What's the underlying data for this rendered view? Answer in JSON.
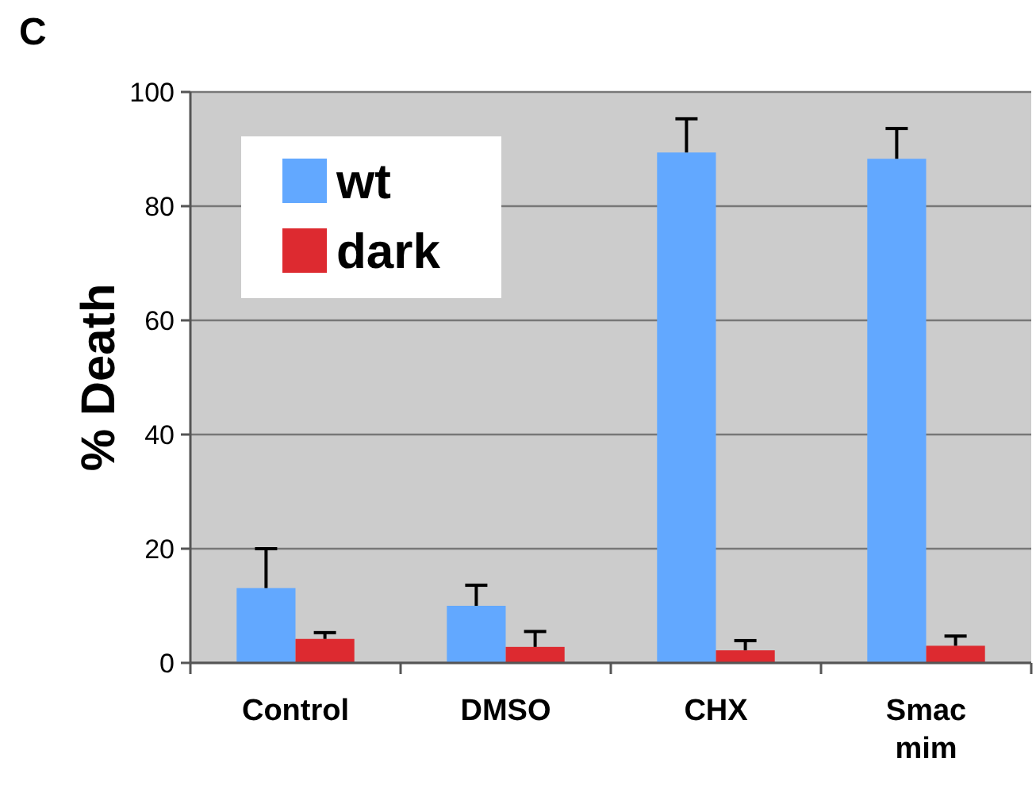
{
  "chart_data": {
    "type": "bar",
    "title": "C",
    "ylabel": "% Death",
    "categories": [
      "Control",
      "DMSO",
      "CHX",
      "Smac mim"
    ],
    "series": [
      {
        "name": "wt",
        "color": "#62a8ff",
        "values": [
          13.1,
          10,
          89.4,
          88.3
        ],
        "errors": [
          [
            13.1,
            20
          ],
          [
            10,
            13.6
          ],
          [
            89.4,
            95.3
          ],
          [
            88.3,
            93.6
          ]
        ]
      },
      {
        "name": "dark",
        "color": "#dd2a30",
        "values": [
          4.2,
          2.8,
          2.2,
          3
        ],
        "errors": [
          [
            4.2,
            5.3
          ],
          [
            2.8,
            5.5
          ],
          [
            2.2,
            3.9
          ],
          [
            3,
            4.7
          ]
        ]
      }
    ],
    "ylim": [
      0,
      100
    ],
    "yticks": [
      0,
      20,
      40,
      60,
      80,
      100
    ],
    "grid": "y",
    "legend": "top left"
  }
}
